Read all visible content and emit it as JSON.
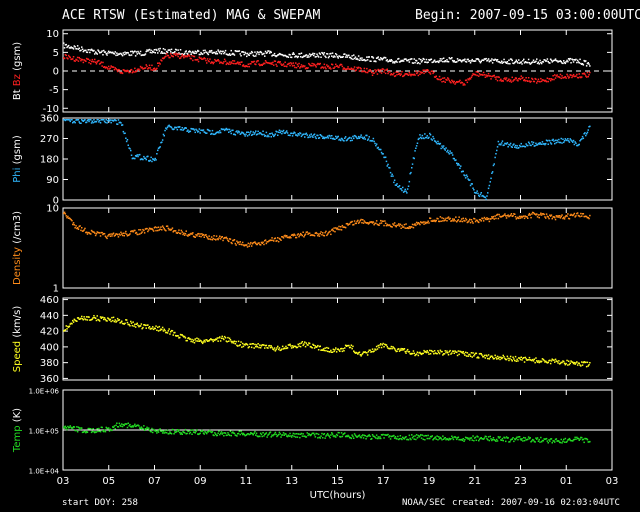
{
  "header": {
    "title": "ACE RTSW (Estimated) MAG & SWEPAM",
    "begin": "Begin: 2007-09-15 03:00:00UTC"
  },
  "footer": {
    "start_doy": "start DOY: 258",
    "source": "NOAA/SEC",
    "created": "created: 2007-09-16 02:03:04UTC"
  },
  "colors": {
    "background": "#000000",
    "axes": "#ffffff",
    "bt": "#ffffff",
    "bz": "#ff2020",
    "phi": "#30b8ff",
    "density": "#ff8c1a",
    "speed": "#ffff20",
    "temp": "#22dd22"
  },
  "chart_data": {
    "type": "scatter",
    "x_axis": {
      "xlabel": "UTC(hours)",
      "range_hours": [
        0,
        24
      ],
      "tick_labels": [
        "03",
        "05",
        "07",
        "09",
        "11",
        "13",
        "15",
        "17",
        "19",
        "21",
        "23",
        "01",
        "03"
      ]
    },
    "panels": [
      {
        "id": "mag",
        "ylabel_parts": [
          "Bt",
          "Bz",
          "(gsm)"
        ],
        "yticks": [
          "10",
          "5",
          "0",
          "-5",
          "-10"
        ],
        "ylim": [
          -11,
          11
        ],
        "zero_line": true,
        "series": [
          {
            "name": "Bt",
            "color": "#ffffff",
            "x": [
              0,
              0.5,
              1,
              1.5,
              2,
              2.5,
              3,
              3.5,
              4,
              4.5,
              5,
              5.5,
              6,
              6.5,
              7,
              7.5,
              8,
              8.5,
              9,
              9.5,
              10,
              10.5,
              11,
              11.5,
              12,
              12.5,
              13,
              13.5,
              14,
              14.5,
              15,
              15.5,
              16,
              16.5,
              17,
              17.5,
              18,
              18.5,
              19,
              19.5,
              20,
              20.5,
              21,
              21.5,
              22,
              22.5,
              23
            ],
            "y": [
              7,
              6.5,
              5.8,
              5.2,
              5,
              4.9,
              4.9,
              5,
              5.6,
              5.5,
              5.3,
              5.2,
              5.3,
              5.2,
              5.1,
              5,
              4.8,
              4.8,
              4.9,
              4.6,
              4.5,
              4.4,
              4.5,
              4.4,
              4.3,
              4,
              3.6,
              3.4,
              3.2,
              3,
              2.8,
              2.8,
              3,
              3.2,
              3.1,
              3,
              3,
              2.9,
              2.8,
              2.8,
              2.7,
              2.7,
              2.8,
              2.8,
              2.9,
              2.8,
              2
            ]
          },
          {
            "name": "Bz",
            "color": "#ff2020",
            "x": [
              0,
              0.5,
              1,
              1.5,
              2,
              2.5,
              3,
              3.5,
              4,
              4.5,
              5,
              5.5,
              6,
              6.5,
              7,
              7.5,
              8,
              8.5,
              9,
              9.5,
              10,
              10.5,
              11,
              11.5,
              12,
              12.5,
              13,
              13.5,
              14,
              14.5,
              15,
              15.5,
              16,
              16.5,
              17,
              17.5,
              18,
              18.5,
              19,
              19.5,
              20,
              20.5,
              21,
              21.5,
              22,
              22.5,
              23
            ],
            "y": [
              4,
              3.5,
              3,
              2.5,
              1,
              0,
              0.4,
              1.2,
              1,
              4.2,
              4.3,
              3.8,
              3.2,
              2.8,
              2.7,
              2.2,
              1.8,
              2.3,
              2.4,
              2,
              1.8,
              1.4,
              1.8,
              1.3,
              1.5,
              1,
              0.6,
              -0.3,
              0.4,
              -0.8,
              -0.5,
              -0.4,
              0,
              -2,
              -2.5,
              -3.2,
              -0.5,
              -1,
              -1.8,
              -2.2,
              -1.6,
              -2.5,
              -2.5,
              -1.3,
              -1.2,
              -1,
              -0.8
            ]
          }
        ]
      },
      {
        "id": "phi",
        "ylabel_parts": [
          "Phi",
          "(gsm)"
        ],
        "yticks": [
          "360",
          "270",
          "180",
          "90",
          "0"
        ],
        "ylim": [
          0,
          360
        ],
        "series": [
          {
            "name": "Phi",
            "color": "#30b8ff",
            "x": [
              0,
              0.5,
              1,
              1.5,
              2,
              2.5,
              3,
              3.5,
              4,
              4.5,
              5,
              5.5,
              6,
              6.5,
              7,
              7.5,
              8,
              8.5,
              9,
              9.5,
              10,
              10.5,
              11,
              11.5,
              12,
              12.5,
              13,
              13.5,
              14,
              14.5,
              15,
              15.5,
              16,
              16.5,
              17,
              17.5,
              18,
              18.5,
              19,
              19.5,
              20,
              20.5,
              21,
              21.5,
              22,
              22.5,
              23
            ],
            "y": [
              355,
              352,
              350,
              352,
              350,
              345,
              195,
              190,
              180,
              322,
              315,
              310,
              305,
              300,
              310,
              300,
              290,
              300,
              290,
              300,
              292,
              290,
              285,
              280,
              275,
              270,
              285,
              270,
              200,
              70,
              40,
              280,
              285,
              240,
              200,
              120,
              40,
              10,
              255,
              245,
              240,
              250,
              255,
              260,
              265,
              250,
              320
            ]
          }
        ]
      },
      {
        "id": "density",
        "ylabel_parts": [
          "Density",
          "(/cm3)"
        ],
        "yticks": [
          "10",
          "1"
        ],
        "ylim": [
          1,
          10
        ],
        "log": true,
        "series": [
          {
            "name": "Density",
            "color": "#ff8c1a",
            "x": [
              0,
              0.5,
              1,
              1.5,
              2,
              2.5,
              3,
              3.5,
              4,
              4.5,
              5,
              5.5,
              6,
              6.5,
              7,
              7.5,
              8,
              8.5,
              9,
              9.5,
              10,
              10.5,
              11,
              11.5,
              12,
              12.5,
              13,
              13.5,
              14,
              14.5,
              15,
              15.5,
              16,
              16.5,
              17,
              17.5,
              18,
              18.5,
              19,
              19.5,
              20,
              20.5,
              21,
              21.5,
              22,
              22.5,
              23
            ],
            "y": [
              9,
              6.2,
              5.2,
              4.8,
              4.5,
              4.8,
              5,
              5.2,
              5.6,
              5.7,
              5.2,
              4.8,
              4.6,
              4.4,
              4.2,
              3.8,
              3.5,
              3.6,
              4,
              4.2,
              4.6,
              4.8,
              4.7,
              4.9,
              5.6,
              6.5,
              7,
              6.8,
              6.6,
              6.2,
              6,
              6.4,
              7.2,
              7.4,
              7.5,
              7.2,
              7,
              7.3,
              8,
              8.2,
              7.8,
              8.4,
              8.2,
              7.6,
              8,
              8.3,
              8
            ]
          }
        ]
      },
      {
        "id": "speed",
        "ylabel_parts": [
          "Speed",
          "(km/s)"
        ],
        "yticks": [
          "460",
          "440",
          "420",
          "400",
          "380",
          "360"
        ],
        "ylim": [
          358,
          462
        ],
        "series": [
          {
            "name": "Speed",
            "color": "#ffff20",
            "x": [
              0,
              0.5,
              1,
              1.5,
              2,
              2.5,
              3,
              3.5,
              4,
              4.5,
              5,
              5.5,
              6,
              6.5,
              7,
              7.5,
              8,
              8.5,
              9,
              9.5,
              10,
              10.5,
              11,
              11.5,
              12,
              12.5,
              13,
              13.5,
              14,
              14.5,
              15,
              15.5,
              16,
              16.5,
              17,
              17.5,
              18,
              18.5,
              19,
              19.5,
              20,
              20.5,
              21,
              21.5,
              22,
              22.5,
              23
            ],
            "y": [
              422,
              435,
              438,
              437,
              436,
              434,
              430,
              426,
              425,
              422,
              415,
              410,
              408,
              410,
              412,
              406,
              402,
              403,
              400,
              398,
              402,
              405,
              400,
              398,
              396,
              402,
              390,
              396,
              404,
              398,
              395,
              392,
              395,
              394,
              393,
              392,
              390,
              389,
              388,
              386,
              385,
              384,
              383,
              382,
              381,
              380,
              378
            ]
          }
        ]
      },
      {
        "id": "temp",
        "ylabel_parts": [
          "Temp",
          "(K)"
        ],
        "yticks": [
          "1.0E+06",
          "1.0E+05",
          "1.0E+04"
        ],
        "ylim": [
          10000,
          1000000
        ],
        "log": true,
        "ref_line": 100000,
        "series": [
          {
            "name": "Temp",
            "color": "#22dd22",
            "x": [
              0,
              0.5,
              1,
              1.5,
              2,
              2.5,
              3,
              3.5,
              4,
              4.5,
              5,
              5.5,
              6,
              6.5,
              7,
              7.5,
              8,
              8.5,
              9,
              9.5,
              10,
              10.5,
              11,
              11.5,
              12,
              12.5,
              13,
              13.5,
              14,
              14.5,
              15,
              15.5,
              16,
              16.5,
              17,
              17.5,
              18,
              18.5,
              19,
              19.5,
              20,
              20.5,
              21,
              21.5,
              22,
              22.5,
              23
            ],
            "y": [
              120000,
              110000,
              100000,
              105000,
              110000,
              150000,
              130000,
              115000,
              100000,
              95000,
              92000,
              95000,
              90000,
              88000,
              86000,
              85000,
              84000,
              82000,
              80000,
              80000,
              78000,
              77000,
              76000,
              75000,
              80000,
              74000,
              72000,
              70000,
              72000,
              70000,
              68000,
              70000,
              66000,
              65000,
              63000,
              62000,
              65000,
              64000,
              63000,
              60000,
              62000,
              60000,
              58000,
              57000,
              58000,
              60000,
              55000
            ]
          }
        ]
      }
    ]
  }
}
